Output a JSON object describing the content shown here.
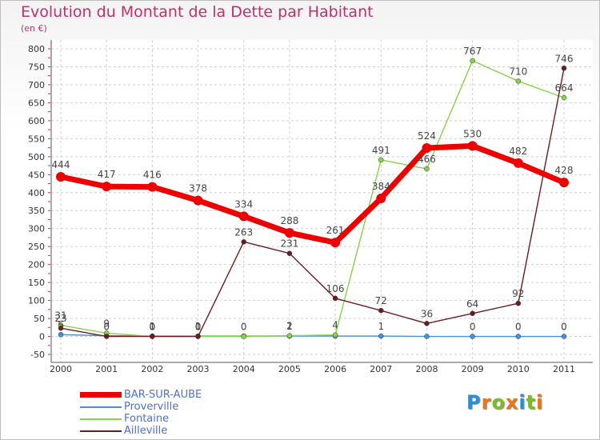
{
  "title": "Evolution du Montant de la Dette par Habitant",
  "subtitle": "(en €)",
  "logo": {
    "text": "Proxiti",
    "letters": [
      {
        "char": "P",
        "color": "#2a8fd6"
      },
      {
        "char": "r",
        "color": "#e8761c"
      },
      {
        "char": "o",
        "color": "#7dbb2b"
      },
      {
        "char": "x",
        "color": "#e8761c"
      },
      {
        "char": "i",
        "color": "#2a8fd6"
      },
      {
        "char": "t",
        "color": "#7dbb2b"
      },
      {
        "char": "i",
        "color": "#e8761c"
      }
    ]
  },
  "chart_data": {
    "type": "line",
    "x": [
      "2000",
      "2001",
      "2002",
      "2003",
      "2004",
      "2005",
      "2006",
      "2007",
      "2008",
      "2009",
      "2010",
      "2011"
    ],
    "ylim": [
      -50,
      800
    ],
    "yticks": [
      -50,
      0,
      50,
      100,
      150,
      200,
      250,
      300,
      350,
      400,
      450,
      500,
      550,
      600,
      650,
      700,
      750,
      800
    ],
    "grid": true,
    "legend_position": "bottom-left",
    "series": [
      {
        "name": "BAR-SUR-AUBE",
        "color": "#ee0000",
        "values": [
          444,
          417,
          416,
          378,
          334,
          288,
          261,
          384,
          524,
          530,
          482,
          428
        ],
        "labels": [
          "444",
          "417",
          "416",
          "378",
          "334",
          "288",
          "261",
          "384",
          "524",
          "530",
          "482",
          "428"
        ]
      },
      {
        "name": "Proverville",
        "color": "#4a90d9",
        "values": [
          5,
          2,
          1,
          1,
          1,
          1,
          1,
          1,
          0,
          0,
          0,
          0
        ],
        "labels": [
          "5",
          "",
          "1",
          "1",
          "",
          "1",
          "",
          "1",
          "",
          "0",
          "0",
          "0"
        ]
      },
      {
        "name": "Fontaine",
        "color": "#86d24b",
        "values": [
          31,
          9,
          0,
          0,
          0,
          2,
          4,
          491,
          466,
          767,
          710,
          664
        ],
        "labels": [
          "31",
          "9",
          "0",
          "0",
          "0",
          "2",
          "4",
          "491",
          "466",
          "767",
          "710",
          "664"
        ]
      },
      {
        "name": "Ailleville",
        "color": "#6b1c22",
        "values": [
          23,
          0,
          0,
          0,
          263,
          231,
          106,
          72,
          36,
          64,
          92,
          746
        ],
        "labels": [
          "23",
          "0",
          "0",
          "0",
          "263",
          "231",
          "106",
          "72",
          "36",
          "64",
          "92",
          "746"
        ]
      }
    ]
  }
}
